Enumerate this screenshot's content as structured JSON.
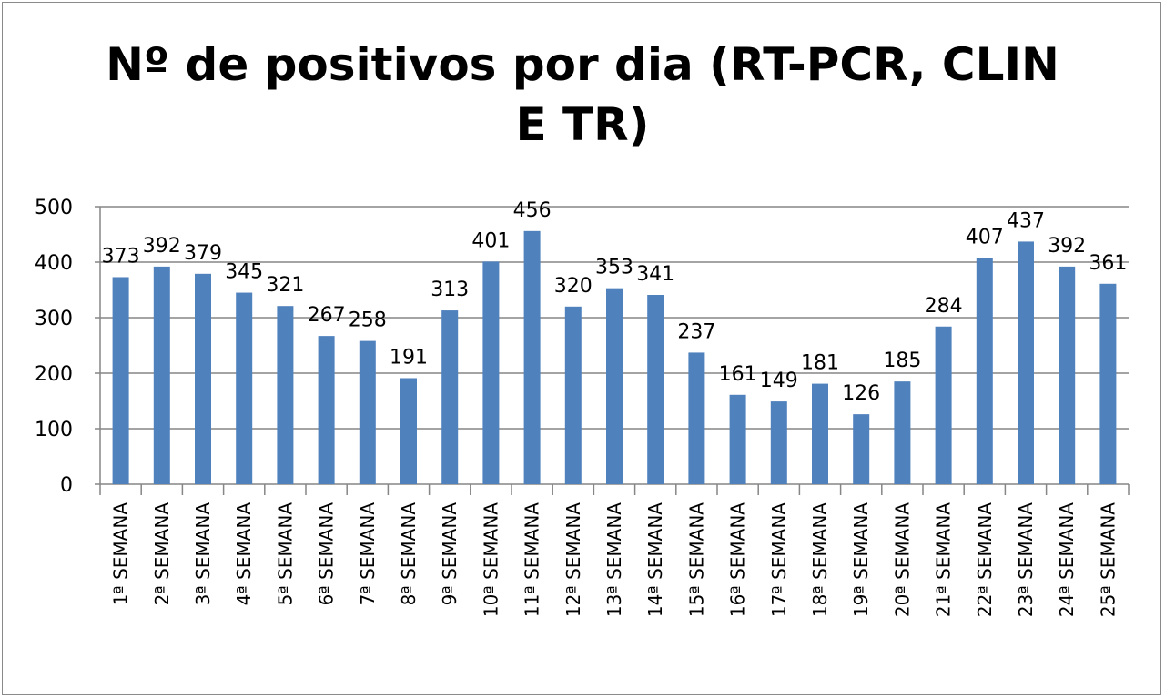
{
  "chart_data": {
    "type": "bar",
    "title_lines": [
      "Nº de positivos por dia (RT-PCR, CLIN",
      "E TR)"
    ],
    "title": "Nº de positivos por dia (RT-PCR, CLIN E TR)",
    "xlabel": "",
    "ylabel": "",
    "ylim": [
      0,
      500
    ],
    "yticks": [
      0,
      100,
      200,
      300,
      400,
      500
    ],
    "grid": true,
    "legend": "none",
    "bar_color": "#4f81bd",
    "categories": [
      "1ª SEMANA",
      "2ª SEMANA",
      "3ª SEMANA",
      "4ª SEMANA",
      "5ª SEMANA",
      "6ª SEMANA",
      "7ª SEMANA",
      "8ª SEMANA",
      "9ª SEMANA",
      "10ª SEMANA",
      "11ª SEMANA",
      "12ª SEMANA",
      "13ª SEMANA",
      "14ª SEMANA",
      "15ª SEMANA",
      "16ª SEMANA",
      "17ª SEMANA",
      "18ª SEMANA",
      "19ª SEMANA",
      "20ª SEMANA",
      "21ª SEMANA",
      "22ª SEMANA",
      "23ª SEMANA",
      "24ª SEMANA",
      "25ª SEMANA"
    ],
    "values": [
      373,
      392,
      379,
      345,
      321,
      267,
      258,
      191,
      313,
      401,
      456,
      320,
      353,
      341,
      237,
      161,
      149,
      181,
      126,
      185,
      284,
      407,
      437,
      392,
      361
    ]
  }
}
